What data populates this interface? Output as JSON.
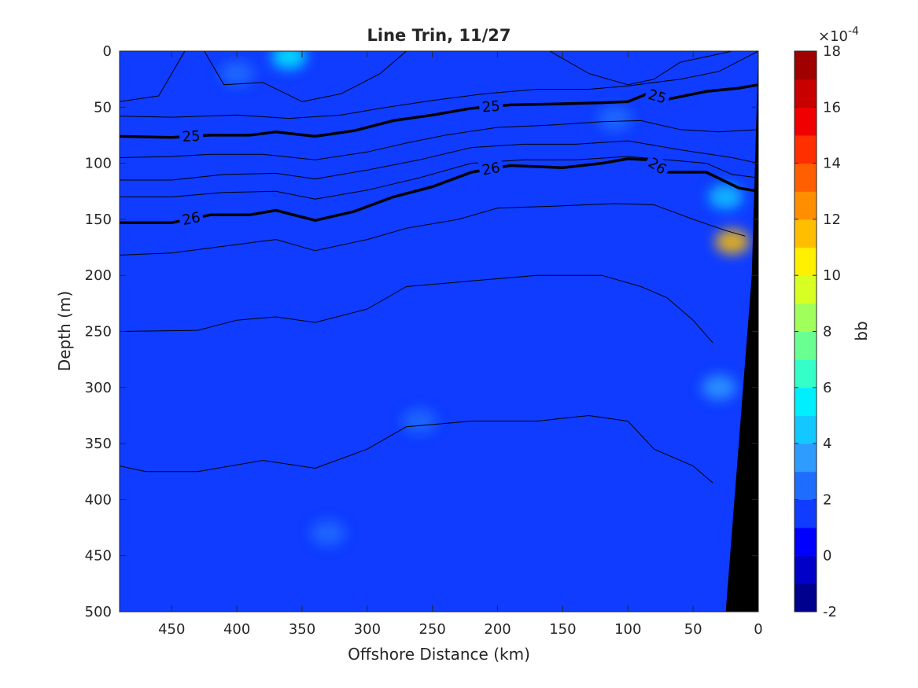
{
  "chart_data": {
    "type": "heatmap",
    "title": "Line Trin, 11/27",
    "xlabel": "Offshore Distance (km)",
    "ylabel": "Depth (m)",
    "xlim": [
      490,
      0
    ],
    "ylim": [
      0,
      500
    ],
    "x_ticks": [
      450,
      400,
      350,
      300,
      250,
      200,
      150,
      100,
      50,
      0
    ],
    "y_ticks": [
      0,
      50,
      100,
      150,
      200,
      250,
      300,
      350,
      400,
      450,
      500
    ],
    "x_reversed": true,
    "y_reversed": true,
    "colorbar": {
      "label": "bb",
      "exponent": "×10",
      "exponent_power": "-4",
      "ticks": [
        18,
        16,
        14,
        12,
        10,
        8,
        6,
        4,
        2,
        0,
        -2
      ],
      "range": [
        -2,
        18
      ],
      "levels": [
        -2,
        -1,
        0,
        1,
        2,
        3,
        4,
        5,
        6,
        7,
        8,
        9,
        10,
        11,
        12,
        13,
        14,
        15,
        16,
        17,
        18
      ],
      "colors": [
        "#00008f",
        "#0000c8",
        "#0000ff",
        "#0f3cff",
        "#1f6dff",
        "#2e9bff",
        "#13c8ff",
        "#00efff",
        "#35ffc8",
        "#6aff91",
        "#a0ff5b",
        "#d7ff24",
        "#ffef00",
        "#ffbf00",
        "#ff8f00",
        "#ff5f00",
        "#ff2f00",
        "#f00000",
        "#c80000",
        "#a00000"
      ]
    },
    "background_value": 1,
    "patches": [
      {
        "distance": 360,
        "depth": 5,
        "value": 5
      },
      {
        "distance": 20,
        "depth": 170,
        "value": 11
      },
      {
        "distance": 25,
        "depth": 130,
        "value": 4
      },
      {
        "distance": 30,
        "depth": 300,
        "value": 3
      },
      {
        "distance": 400,
        "depth": 20,
        "value": 2
      },
      {
        "distance": 330,
        "depth": 430,
        "value": 2
      },
      {
        "distance": 260,
        "depth": 330,
        "value": 2
      },
      {
        "distance": 110,
        "depth": 60,
        "value": 2
      }
    ],
    "isopycnals": [
      {
        "value": 25,
        "labeled": true,
        "labels": [
          "25",
          "25",
          "25"
        ],
        "points": [
          [
            490,
            76
          ],
          [
            450,
            77
          ],
          [
            420,
            75
          ],
          [
            390,
            75
          ],
          [
            370,
            72
          ],
          [
            340,
            76
          ],
          [
            310,
            71
          ],
          [
            280,
            62
          ],
          [
            250,
            57
          ],
          [
            220,
            51
          ],
          [
            190,
            48
          ],
          [
            150,
            47
          ],
          [
            120,
            46
          ],
          [
            100,
            45
          ],
          [
            85,
            38
          ],
          [
            70,
            43
          ],
          [
            40,
            36
          ],
          [
            15,
            33
          ],
          [
            0,
            30
          ]
        ]
      },
      {
        "value": 26,
        "labeled": true,
        "labels": [
          "26",
          "26",
          "26"
        ],
        "points": [
          [
            490,
            153
          ],
          [
            450,
            153
          ],
          [
            420,
            146
          ],
          [
            390,
            146
          ],
          [
            370,
            142
          ],
          [
            340,
            151
          ],
          [
            310,
            143
          ],
          [
            280,
            130
          ],
          [
            250,
            121
          ],
          [
            220,
            108
          ],
          [
            190,
            102
          ],
          [
            150,
            104
          ],
          [
            120,
            100
          ],
          [
            100,
            96
          ],
          [
            85,
            97
          ],
          [
            70,
            108
          ],
          [
            40,
            108
          ],
          [
            15,
            122
          ],
          [
            0,
            125
          ]
        ]
      },
      {
        "value": 24.5,
        "labeled": false,
        "labels": [],
        "points": [
          [
            490,
            45
          ],
          [
            460,
            40
          ],
          [
            440,
            0
          ]
        ]
      },
      {
        "value": 24.5,
        "labeled": false,
        "labels": [],
        "points": [
          [
            425,
            0
          ],
          [
            410,
            30
          ],
          [
            380,
            28
          ],
          [
            350,
            45
          ],
          [
            320,
            38
          ],
          [
            290,
            20
          ],
          [
            270,
            0
          ]
        ]
      },
      {
        "value": 24.6,
        "labeled": false,
        "labels": [],
        "points": [
          [
            160,
            0
          ],
          [
            130,
            20
          ],
          [
            100,
            30
          ],
          [
            80,
            25
          ],
          [
            60,
            10
          ],
          [
            40,
            5
          ],
          [
            20,
            0
          ]
        ]
      },
      {
        "value": 24.8,
        "labeled": false,
        "labels": [],
        "points": [
          [
            490,
            58
          ],
          [
            450,
            59
          ],
          [
            400,
            57
          ],
          [
            360,
            60
          ],
          [
            320,
            57
          ],
          [
            290,
            51
          ],
          [
            250,
            44
          ],
          [
            210,
            38
          ],
          [
            170,
            34
          ],
          [
            130,
            34
          ],
          [
            100,
            31
          ],
          [
            60,
            25
          ],
          [
            30,
            18
          ],
          [
            0,
            0
          ]
        ]
      },
      {
        "value": 25.4,
        "labeled": false,
        "labels": [],
        "points": [
          [
            490,
            95
          ],
          [
            450,
            94
          ],
          [
            420,
            92
          ],
          [
            380,
            92
          ],
          [
            340,
            97
          ],
          [
            300,
            90
          ],
          [
            270,
            82
          ],
          [
            240,
            75
          ],
          [
            200,
            68
          ],
          [
            160,
            66
          ],
          [
            120,
            63
          ],
          [
            90,
            62
          ],
          [
            60,
            70
          ],
          [
            30,
            72
          ],
          [
            0,
            70
          ]
        ]
      },
      {
        "value": 25.7,
        "labeled": false,
        "labels": [],
        "points": [
          [
            490,
            115
          ],
          [
            450,
            115
          ],
          [
            410,
            110
          ],
          [
            370,
            109
          ],
          [
            340,
            114
          ],
          [
            300,
            106
          ],
          [
            260,
            97
          ],
          [
            220,
            86
          ],
          [
            180,
            83
          ],
          [
            140,
            83
          ],
          [
            100,
            80
          ],
          [
            60,
            88
          ],
          [
            20,
            95
          ],
          [
            0,
            100
          ]
        ]
      },
      {
        "value": 25.85,
        "labeled": false,
        "labels": [],
        "points": [
          [
            490,
            130
          ],
          [
            450,
            130
          ],
          [
            410,
            126
          ],
          [
            370,
            125
          ],
          [
            340,
            132
          ],
          [
            300,
            124
          ],
          [
            260,
            113
          ],
          [
            220,
            100
          ],
          [
            180,
            97
          ],
          [
            140,
            97
          ],
          [
            100,
            94
          ],
          [
            70,
            97
          ],
          [
            40,
            100
          ],
          [
            20,
            110
          ],
          [
            0,
            113
          ]
        ]
      },
      {
        "value": 26.2,
        "labeled": false,
        "labels": [],
        "points": [
          [
            490,
            182
          ],
          [
            450,
            180
          ],
          [
            410,
            174
          ],
          [
            370,
            168
          ],
          [
            340,
            178
          ],
          [
            300,
            168
          ],
          [
            270,
            158
          ],
          [
            230,
            150
          ],
          [
            200,
            140
          ],
          [
            150,
            138
          ],
          [
            110,
            136
          ],
          [
            80,
            137
          ],
          [
            50,
            150
          ],
          [
            25,
            160
          ],
          [
            10,
            165
          ]
        ]
      },
      {
        "value": 26.4,
        "labeled": false,
        "labels": [],
        "points": [
          [
            490,
            250
          ],
          [
            430,
            249
          ],
          [
            400,
            240
          ],
          [
            370,
            237
          ],
          [
            340,
            242
          ],
          [
            300,
            230
          ],
          [
            270,
            210
          ],
          [
            220,
            205
          ],
          [
            170,
            200
          ],
          [
            120,
            200
          ],
          [
            90,
            210
          ],
          [
            70,
            220
          ],
          [
            50,
            240
          ],
          [
            35,
            260
          ]
        ]
      },
      {
        "value": 26.6,
        "labeled": false,
        "labels": [],
        "points": [
          [
            490,
            370
          ],
          [
            470,
            375
          ],
          [
            430,
            375
          ],
          [
            380,
            365
          ],
          [
            340,
            372
          ],
          [
            300,
            355
          ],
          [
            270,
            335
          ],
          [
            220,
            330
          ],
          [
            170,
            330
          ],
          [
            130,
            325
          ],
          [
            100,
            330
          ],
          [
            80,
            355
          ],
          [
            50,
            370
          ],
          [
            35,
            385
          ]
        ]
      }
    ],
    "bathymetry": {
      "fill": "#000000",
      "surface": [
        [
          0,
          0
        ],
        [
          0,
          500
        ],
        [
          25,
          500
        ],
        [
          5,
          200
        ]
      ]
    }
  }
}
